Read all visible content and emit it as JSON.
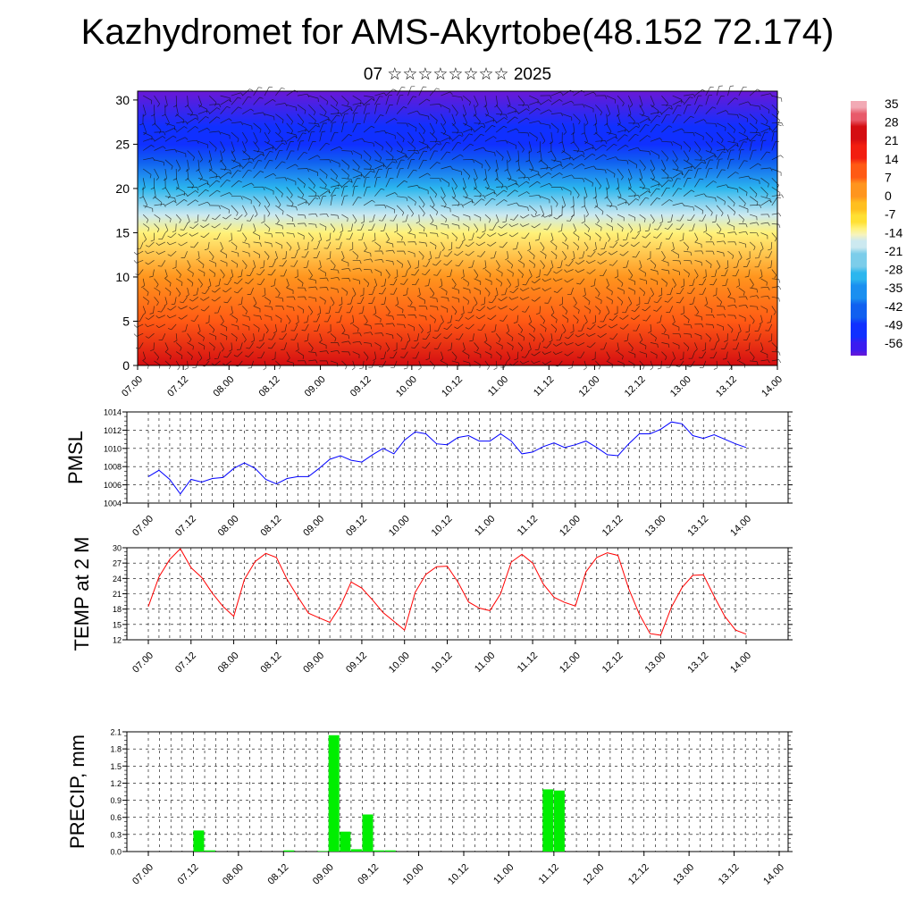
{
  "header": {
    "title": "Kazhydromet for AMS-Akyrtobe(48.152 72.174)",
    "subtitle": "07 ☆☆☆☆☆☆☆☆ 2025"
  },
  "time_labels": [
    "07.00",
    "07.12",
    "08.00",
    "08.12",
    "09.00",
    "09.12",
    "10.00",
    "10.12",
    "11.00",
    "11.12",
    "12.00",
    "12.12",
    "13.00",
    "13.12",
    "14.00"
  ],
  "chart_data": [
    {
      "type": "heatmap",
      "title": "",
      "xlabel": "",
      "ylabel": "",
      "x": [
        "07.00",
        "07.12",
        "08.00",
        "08.12",
        "09.00",
        "09.12",
        "10.00",
        "10.12",
        "11.00",
        "11.12",
        "12.00",
        "12.12",
        "13.00",
        "13.12",
        "14.00"
      ],
      "ylim": [
        0,
        31
      ],
      "yticks": [
        0,
        5,
        10,
        15,
        20,
        25,
        30
      ],
      "colorbar": {
        "labels": [
          "35",
          "28",
          "21",
          "14",
          "7",
          "0",
          "-7",
          "-14",
          "-21",
          "-28",
          "-35",
          "-42",
          "-49",
          "-56"
        ],
        "min": -63,
        "max": 38
      },
      "temperature_profile": [
        {
          "level": 0,
          "value": 25
        },
        {
          "level": 5,
          "value": 14
        },
        {
          "level": 10,
          "value": 2
        },
        {
          "level": 15,
          "value": -10
        },
        {
          "level": 17,
          "value": -17
        },
        {
          "level": 20,
          "value": -30
        },
        {
          "level": 23,
          "value": -42
        },
        {
          "level": 25,
          "value": -50
        },
        {
          "level": 27,
          "value": -55
        },
        {
          "level": 31,
          "value": -63
        }
      ],
      "overlay": "wind barbs"
    },
    {
      "type": "line",
      "ylabel": "PMSL",
      "ylim": [
        1004,
        1014
      ],
      "yticks": [
        "1004",
        "1006",
        "1008",
        "1010",
        "1012",
        "1014"
      ],
      "color": "#0000ff",
      "x": [
        "07.00",
        "07.03",
        "07.06",
        "07.09",
        "07.12",
        "07.15",
        "07.18",
        "07.21",
        "08.00",
        "08.03",
        "08.06",
        "08.09",
        "08.12",
        "08.15",
        "08.18",
        "08.21",
        "09.00",
        "09.03",
        "09.06",
        "09.09",
        "09.12",
        "09.15",
        "09.18",
        "09.21",
        "10.00",
        "10.03",
        "10.06",
        "10.09",
        "10.12",
        "10.15",
        "10.18",
        "10.21",
        "11.00",
        "11.03",
        "11.06",
        "11.09",
        "11.12",
        "11.15",
        "11.18",
        "11.21",
        "12.00",
        "12.03",
        "12.06",
        "12.09",
        "12.12",
        "12.15",
        "12.18",
        "12.21",
        "13.00",
        "13.03",
        "13.06",
        "13.09",
        "13.12",
        "13.15",
        "13.18",
        "13.21",
        "14.00"
      ],
      "values": [
        1006.9,
        1007.6,
        1006.6,
        1005.0,
        1006.6,
        1006.3,
        1006.7,
        1006.8,
        1007.8,
        1008.4,
        1007.8,
        1006.6,
        1006.1,
        1006.7,
        1006.9,
        1006.9,
        1007.8,
        1008.8,
        1009.2,
        1008.7,
        1008.5,
        1009.3,
        1010.0,
        1009.4,
        1010.9,
        1011.8,
        1011.6,
        1010.5,
        1010.4,
        1011.2,
        1011.4,
        1010.8,
        1010.8,
        1011.6,
        1010.8,
        1009.4,
        1009.6,
        1010.2,
        1010.6,
        1010.1,
        1010.4,
        1010.8,
        1010.1,
        1009.3,
        1009.2,
        1010.5,
        1011.6,
        1011.6,
        1012.1,
        1012.9,
        1012.7,
        1011.4,
        1011.1,
        1011.5,
        1011.0,
        1010.5,
        1010.1
      ]
    },
    {
      "type": "line",
      "ylabel": "TEMP at 2 M",
      "ylim": [
        12,
        30
      ],
      "yticks": [
        "12",
        "15",
        "18",
        "21",
        "24",
        "27",
        "30"
      ],
      "color": "#ff0000",
      "x": [
        "07.00",
        "07.03",
        "07.06",
        "07.09",
        "07.12",
        "07.15",
        "07.18",
        "07.21",
        "08.00",
        "08.03",
        "08.06",
        "08.09",
        "08.12",
        "08.15",
        "08.18",
        "08.21",
        "09.00",
        "09.03",
        "09.06",
        "09.09",
        "09.12",
        "09.15",
        "09.18",
        "09.21",
        "10.00",
        "10.03",
        "10.06",
        "10.09",
        "10.12",
        "10.15",
        "10.18",
        "10.21",
        "11.00",
        "11.03",
        "11.06",
        "11.09",
        "11.12",
        "11.15",
        "11.18",
        "11.21",
        "12.00",
        "12.03",
        "12.06",
        "12.09",
        "12.12",
        "12.15",
        "12.18",
        "12.21",
        "13.00",
        "13.03",
        "13.06",
        "13.09",
        "13.12",
        "13.15",
        "13.18",
        "13.21",
        "14.00"
      ],
      "values": [
        18.5,
        24.3,
        27.7,
        29.8,
        26.1,
        24.2,
        21.1,
        18.5,
        16.6,
        23.8,
        27.3,
        28.9,
        28.1,
        23.8,
        20.4,
        17.2,
        16.3,
        15.4,
        18.6,
        23.3,
        22.1,
        19.8,
        17.3,
        15.6,
        13.9,
        21.3,
        24.8,
        26.3,
        26.4,
        23.3,
        19.4,
        18.2,
        17.7,
        21.0,
        27.2,
        28.7,
        27.0,
        22.9,
        20.3,
        19.3,
        18.6,
        25.3,
        28.1,
        29.0,
        28.5,
        22.0,
        17.0,
        13.2,
        12.9,
        18.4,
        22.2,
        24.6,
        24.7,
        20.5,
        16.6,
        13.9,
        13.1
      ]
    },
    {
      "type": "bar",
      "ylabel": "PRECIP, mm",
      "ylim": [
        0,
        2.1
      ],
      "yticks": [
        "0.0",
        "0.3",
        "0.6",
        "0.9",
        "1.2",
        "1.5",
        "1.8",
        "2.1"
      ],
      "color": "#00ee00",
      "x": [
        "07.00",
        "07.03",
        "07.06",
        "07.09",
        "07.12",
        "07.15",
        "07.18",
        "07.21",
        "08.00",
        "08.03",
        "08.06",
        "08.09",
        "08.12",
        "08.15",
        "08.18",
        "08.21",
        "09.00",
        "09.03",
        "09.06",
        "09.09",
        "09.12",
        "09.15",
        "09.18",
        "09.21",
        "10.00",
        "10.03",
        "10.06",
        "10.09",
        "10.12",
        "10.15",
        "10.18",
        "10.21",
        "11.00",
        "11.03",
        "11.06",
        "11.09",
        "11.12",
        "11.15",
        "11.18",
        "11.21",
        "12.00",
        "12.03",
        "12.06",
        "12.09",
        "12.12",
        "12.15",
        "12.18",
        "12.21",
        "13.00",
        "13.03",
        "13.06",
        "13.09",
        "13.12",
        "13.15",
        "13.18",
        "13.21"
      ],
      "values": [
        0,
        0,
        0,
        0,
        0.37,
        0.02,
        0,
        0,
        0,
        0,
        0,
        0,
        0.02,
        0,
        0,
        0.01,
        2.04,
        0.35,
        0.04,
        0.65,
        0.02,
        0.02,
        0,
        0,
        0,
        0,
        0,
        0,
        0,
        0,
        0,
        0,
        0,
        0,
        0,
        1.09,
        1.07,
        0,
        0,
        0,
        0,
        0,
        0,
        0,
        0,
        0,
        0,
        0,
        0,
        0,
        0,
        0,
        0,
        0,
        0,
        0
      ]
    }
  ]
}
